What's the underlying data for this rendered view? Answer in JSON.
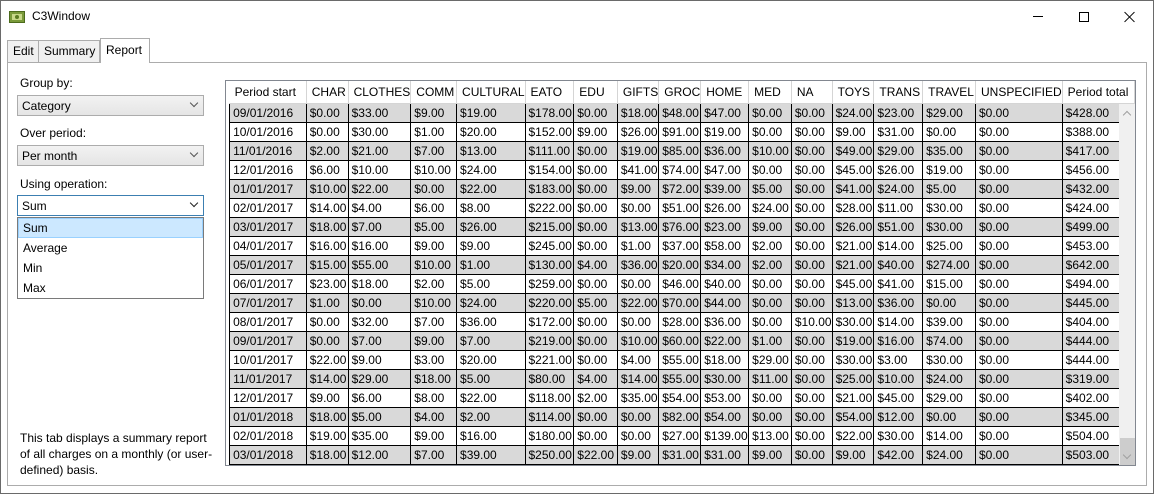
{
  "window": {
    "title": "C3Window"
  },
  "tabs": [
    "Edit",
    "Summary",
    "Report"
  ],
  "controls": {
    "group_by_label": "Group by:",
    "group_by_value": "Category",
    "over_period_label": "Over period:",
    "over_period_value": "Per month",
    "operation_label": "Using operation:",
    "operation_value": "Sum",
    "operation_options": [
      "Sum",
      "Average",
      "Min",
      "Max"
    ]
  },
  "description": "This tab displays a summary report of all charges on a monthly (or user-defined) basis.",
  "table": {
    "columns": [
      "Period start",
      "CHAR",
      "CLOTHES",
      "COMM",
      "CULTURAL",
      "EATO",
      "EDU",
      "GIFTS",
      "GROC",
      "HOME",
      "MED",
      "NA",
      "TOYS",
      "TRANS",
      "TRAVEL",
      "UNSPECIFIED",
      "Period total"
    ],
    "rows": [
      [
        "09/01/2016",
        "$0.00",
        "$33.00",
        "$9.00",
        "$19.00",
        "$178.00",
        "$0.00",
        "$18.00",
        "$48.00",
        "$47.00",
        "$0.00",
        "$0.00",
        "$24.00",
        "$23.00",
        "$29.00",
        "$0.00",
        "$428.00"
      ],
      [
        "10/01/2016",
        "$0.00",
        "$30.00",
        "$1.00",
        "$20.00",
        "$152.00",
        "$9.00",
        "$26.00",
        "$91.00",
        "$19.00",
        "$0.00",
        "$0.00",
        "$9.00",
        "$31.00",
        "$0.00",
        "$0.00",
        "$388.00"
      ],
      [
        "11/01/2016",
        "$2.00",
        "$21.00",
        "$7.00",
        "$13.00",
        "$111.00",
        "$0.00",
        "$19.00",
        "$85.00",
        "$36.00",
        "$10.00",
        "$0.00",
        "$49.00",
        "$29.00",
        "$35.00",
        "$0.00",
        "$417.00"
      ],
      [
        "12/01/2016",
        "$6.00",
        "$10.00",
        "$10.00",
        "$24.00",
        "$154.00",
        "$0.00",
        "$41.00",
        "$74.00",
        "$47.00",
        "$0.00",
        "$0.00",
        "$45.00",
        "$26.00",
        "$19.00",
        "$0.00",
        "$456.00"
      ],
      [
        "01/01/2017",
        "$10.00",
        "$22.00",
        "$0.00",
        "$22.00",
        "$183.00",
        "$0.00",
        "$9.00",
        "$72.00",
        "$39.00",
        "$5.00",
        "$0.00",
        "$41.00",
        "$24.00",
        "$5.00",
        "$0.00",
        "$432.00"
      ],
      [
        "02/01/2017",
        "$14.00",
        "$4.00",
        "$6.00",
        "$8.00",
        "$222.00",
        "$0.00",
        "$0.00",
        "$51.00",
        "$26.00",
        "$24.00",
        "$0.00",
        "$28.00",
        "$11.00",
        "$30.00",
        "$0.00",
        "$424.00"
      ],
      [
        "03/01/2017",
        "$18.00",
        "$7.00",
        "$5.00",
        "$26.00",
        "$215.00",
        "$0.00",
        "$13.00",
        "$76.00",
        "$23.00",
        "$9.00",
        "$0.00",
        "$26.00",
        "$51.00",
        "$30.00",
        "$0.00",
        "$499.00"
      ],
      [
        "04/01/2017",
        "$16.00",
        "$16.00",
        "$9.00",
        "$9.00",
        "$245.00",
        "$0.00",
        "$1.00",
        "$37.00",
        "$58.00",
        "$2.00",
        "$0.00",
        "$21.00",
        "$14.00",
        "$25.00",
        "$0.00",
        "$453.00"
      ],
      [
        "05/01/2017",
        "$15.00",
        "$55.00",
        "$10.00",
        "$1.00",
        "$130.00",
        "$4.00",
        "$36.00",
        "$20.00",
        "$34.00",
        "$2.00",
        "$0.00",
        "$21.00",
        "$40.00",
        "$274.00",
        "$0.00",
        "$642.00"
      ],
      [
        "06/01/2017",
        "$23.00",
        "$18.00",
        "$2.00",
        "$5.00",
        "$259.00",
        "$0.00",
        "$0.00",
        "$46.00",
        "$40.00",
        "$0.00",
        "$0.00",
        "$45.00",
        "$41.00",
        "$15.00",
        "$0.00",
        "$494.00"
      ],
      [
        "07/01/2017",
        "$1.00",
        "$0.00",
        "$10.00",
        "$24.00",
        "$220.00",
        "$5.00",
        "$22.00",
        "$70.00",
        "$44.00",
        "$0.00",
        "$0.00",
        "$13.00",
        "$36.00",
        "$0.00",
        "$0.00",
        "$445.00"
      ],
      [
        "08/01/2017",
        "$0.00",
        "$32.00",
        "$7.00",
        "$36.00",
        "$172.00",
        "$0.00",
        "$0.00",
        "$28.00",
        "$36.00",
        "$0.00",
        "$10.00",
        "$30.00",
        "$14.00",
        "$39.00",
        "$0.00",
        "$404.00"
      ],
      [
        "09/01/2017",
        "$0.00",
        "$7.00",
        "$9.00",
        "$7.00",
        "$219.00",
        "$0.00",
        "$10.00",
        "$60.00",
        "$22.00",
        "$1.00",
        "$0.00",
        "$19.00",
        "$16.00",
        "$74.00",
        "$0.00",
        "$444.00"
      ],
      [
        "10/01/2017",
        "$22.00",
        "$9.00",
        "$3.00",
        "$20.00",
        "$221.00",
        "$0.00",
        "$4.00",
        "$55.00",
        "$18.00",
        "$29.00",
        "$0.00",
        "$30.00",
        "$3.00",
        "$30.00",
        "$0.00",
        "$444.00"
      ],
      [
        "11/01/2017",
        "$14.00",
        "$29.00",
        "$18.00",
        "$5.00",
        "$80.00",
        "$4.00",
        "$14.00",
        "$55.00",
        "$30.00",
        "$11.00",
        "$0.00",
        "$25.00",
        "$10.00",
        "$24.00",
        "$0.00",
        "$319.00"
      ],
      [
        "12/01/2017",
        "$9.00",
        "$6.00",
        "$8.00",
        "$22.00",
        "$118.00",
        "$2.00",
        "$35.00",
        "$54.00",
        "$53.00",
        "$0.00",
        "$0.00",
        "$21.00",
        "$45.00",
        "$29.00",
        "$0.00",
        "$402.00"
      ],
      [
        "01/01/2018",
        "$18.00",
        "$5.00",
        "$4.00",
        "$2.00",
        "$114.00",
        "$0.00",
        "$0.00",
        "$82.00",
        "$54.00",
        "$0.00",
        "$0.00",
        "$54.00",
        "$12.00",
        "$0.00",
        "$0.00",
        "$345.00"
      ],
      [
        "02/01/2018",
        "$19.00",
        "$35.00",
        "$9.00",
        "$16.00",
        "$180.00",
        "$0.00",
        "$0.00",
        "$27.00",
        "$139.00",
        "$13.00",
        "$0.00",
        "$22.00",
        "$30.00",
        "$14.00",
        "$0.00",
        "$504.00"
      ],
      [
        "03/01/2018",
        "$18.00",
        "$12.00",
        "$7.00",
        "$39.00",
        "$250.00",
        "$22.00",
        "$9.00",
        "$31.00",
        "$31.00",
        "$9.00",
        "$0.00",
        "$9.00",
        "$42.00",
        "$24.00",
        "$0.00",
        "$503.00"
      ]
    ]
  }
}
